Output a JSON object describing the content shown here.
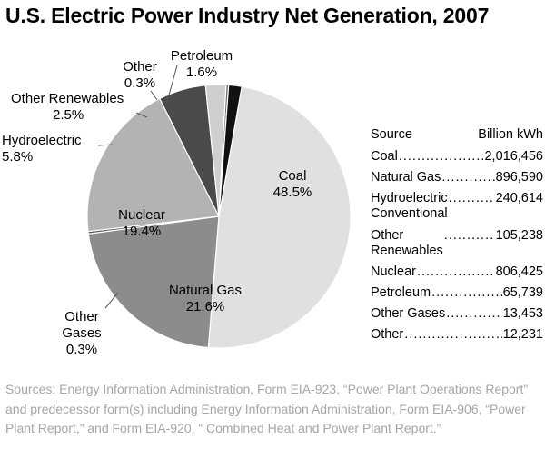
{
  "title": "U.S. Electric Power Industry Net Generation, 2007",
  "chart_data": {
    "type": "pie",
    "title": "U.S. Electric Power Industry Net Generation, 2007",
    "unit": "Billion kWh",
    "slices": [
      {
        "name": "Coal",
        "label": "Coal",
        "percent_label": "48.5%",
        "value": 48.5,
        "color": "#e0e0e0"
      },
      {
        "name": "Natural Gas",
        "label": "Natural Gas",
        "percent_label": "21.6%",
        "value": 21.6,
        "color": "#8c8c8c"
      },
      {
        "name": "Other Gases",
        "label": "Other\nGases",
        "percent_label": "0.3%",
        "value": 0.3,
        "color": "#5a5a5a"
      },
      {
        "name": "Nuclear",
        "label": "Nuclear",
        "percent_label": "19.4%",
        "value": 19.4,
        "color": "#b3b3b3"
      },
      {
        "name": "Hydroelectric",
        "label": "Hydroelectric",
        "percent_label": "5.8%",
        "value": 5.8,
        "color": "#4a4a4a"
      },
      {
        "name": "Other Renewables",
        "label": "Other Renewables",
        "percent_label": "2.5%",
        "value": 2.5,
        "color": "#cfcfcf"
      },
      {
        "name": "Other",
        "label": "Other",
        "percent_label": "0.3%",
        "value": 0.3,
        "color": "#6f6f6f"
      },
      {
        "name": "Petroleum",
        "label": "Petroleum",
        "percent_label": "1.6%",
        "value": 1.6,
        "color": "#111111"
      }
    ]
  },
  "table": {
    "header_source": "Source",
    "header_value": "Billion kWh",
    "rows": [
      {
        "label": "Coal",
        "value": "2,016,456"
      },
      {
        "label": "Natural Gas",
        "value": "896,590"
      },
      {
        "label": "Hydroelectric\nConventional",
        "value": "240,614"
      },
      {
        "label": "Other\nRenewables",
        "value": "105,238"
      },
      {
        "label": "Nuclear",
        "value": "806,425"
      },
      {
        "label": "Petroleum",
        "value": "65,739"
      },
      {
        "label": "Other Gases",
        "value": "13,453"
      },
      {
        "label": "Other",
        "value": "12,231"
      }
    ]
  },
  "sources": "Sources: Energy Information Administration, Form EIA-923, “Power Plant Operations Report” and predecessor form(s) including Energy Information Administration, Form EIA-906, “Power Plant Report,” and Form EIA-920, “ Combined Heat and Power Plant Report.”"
}
